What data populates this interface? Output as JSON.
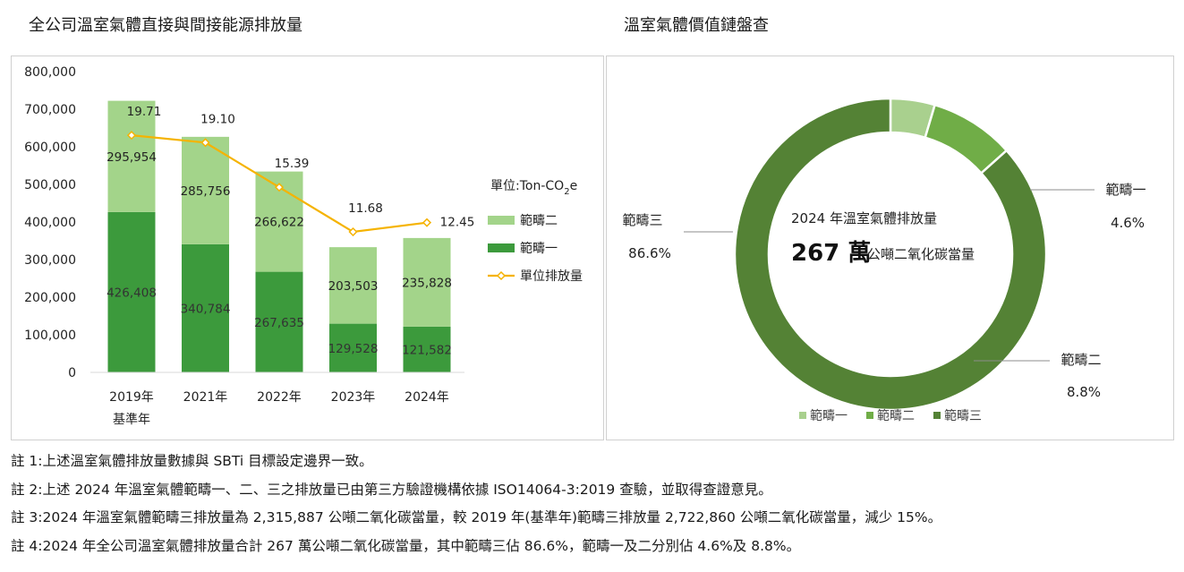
{
  "left_title": "全公司溫室氣體直接與間接能源排放量",
  "right_title": "溫室氣體價值鏈盤查",
  "chart_data": [
    {
      "type": "bar",
      "stacked": true,
      "categories": [
        "2019年",
        "2021年",
        "2022年",
        "2023年",
        "2024年"
      ],
      "category_sublabels": [
        "基準年",
        "",
        "",
        "",
        ""
      ],
      "series": [
        {
          "name": "範疇一",
          "values": [
            426408,
            340784,
            267635,
            129528,
            121582
          ],
          "color": "#3c9a3c"
        },
        {
          "name": "範疇二",
          "values": [
            295954,
            285756,
            266622,
            203503,
            235828
          ],
          "color": "#a3d48a"
        }
      ],
      "value_labels": {
        "scope1": [
          "426,408",
          "340,784",
          "267,635",
          "129,528",
          "121,582"
        ],
        "scope2": [
          "295,954",
          "285,756",
          "266,622",
          "203,503",
          "235,828"
        ]
      },
      "line_series": {
        "name": "單位排放量",
        "values": [
          19.71,
          19.1,
          15.39,
          11.68,
          12.45
        ],
        "labels": [
          "19.71",
          "19.10",
          "15.39",
          "11.68",
          "12.45"
        ],
        "color": "#f5b300"
      },
      "y_ticks": [
        "800,000",
        "700,000",
        "600,000",
        "500,000",
        "400,000",
        "300,000",
        "200,000",
        "100,000",
        "0"
      ],
      "ylim": [
        0,
        800000
      ],
      "unit_label_prefix": "單位:Ton-CO",
      "unit_label_sub": "2",
      "unit_label_suffix": "e",
      "legend": [
        "範疇二",
        "範疇一",
        "單位排放量"
      ],
      "legend_position": "right"
    },
    {
      "type": "pie",
      "donut": true,
      "slices": [
        {
          "name": "範疇一",
          "value": 4.6,
          "label": "4.6%",
          "color": "#a9d08e"
        },
        {
          "name": "範疇二",
          "value": 8.8,
          "label": "8.8%",
          "color": "#70ad47"
        },
        {
          "name": "範疇三",
          "value": 86.6,
          "label": "86.6%",
          "color": "#548235"
        }
      ],
      "center_line1": "2024 年溫室氣體排放量",
      "center_big": "267 萬",
      "center_unit": "公噸二氧化碳當量",
      "legend": [
        "範疇一",
        "範疇二",
        "範疇三"
      ],
      "legend_position": "bottom"
    }
  ],
  "notes": [
    "註 1:上述溫室氣體排放量數據與 SBTi 目標設定邊界一致。",
    "註 2:上述 2024 年溫室氣體範疇一、二、三之排放量已由第三方驗證機構依據 ISO14064-3:2019 查驗，並取得查證意見。",
    "註 3:2024 年溫室氣體範疇三排放量為 2,315,887 公噸二氧化碳當量，較 2019 年(基準年)範疇三排放量 2,722,860 公噸二氧化碳當量，減少 15%。",
    "註 4:2024 年全公司溫室氣體排放量合計 267 萬公噸二氧化碳當量，其中範疇三佔 86.6%，範疇一及二分別佔 4.6%及 8.8%。"
  ]
}
